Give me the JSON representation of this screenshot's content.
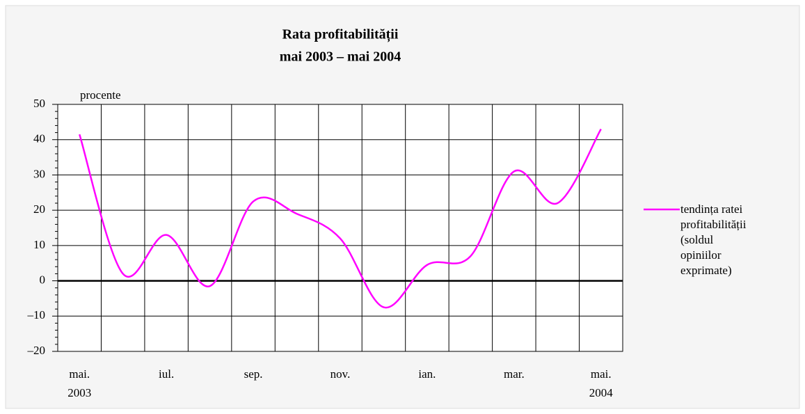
{
  "chart_data": {
    "type": "line",
    "title": "Rata profitabilității",
    "subtitle": "mai 2003 – mai 2004",
    "y_label": "procente",
    "categories": [
      "mai.",
      null,
      "iul.",
      null,
      "sep.",
      null,
      "nov.",
      null,
      "ian.",
      null,
      "mar.",
      null,
      "mai."
    ],
    "years": [
      "2003",
      null,
      null,
      null,
      null,
      null,
      null,
      null,
      null,
      null,
      null,
      null,
      "2004"
    ],
    "series": [
      {
        "name": "tendința ratei profitabilității (soldul opiniilor exprimate)",
        "color": "#ff00ff",
        "values": [
          41.5,
          2,
          13,
          -1.5,
          22.5,
          19,
          12,
          -7.5,
          4.5,
          7,
          31,
          22,
          43
        ]
      }
    ],
    "ylim": [
      -20,
      50
    ],
    "yticks": [
      {
        "value": -20,
        "label": "–20"
      },
      {
        "value": -10,
        "label": "–10"
      },
      0,
      10,
      20,
      30,
      40,
      50
    ],
    "yticks_minor": [
      -18,
      -16,
      -14,
      -12,
      -8,
      -6,
      -4,
      -2,
      2,
      4,
      6,
      8,
      12,
      14,
      16,
      18,
      22,
      24,
      26,
      28,
      32,
      34,
      36,
      38,
      42,
      44,
      46,
      48
    ],
    "grid": true,
    "legend": "right"
  }
}
